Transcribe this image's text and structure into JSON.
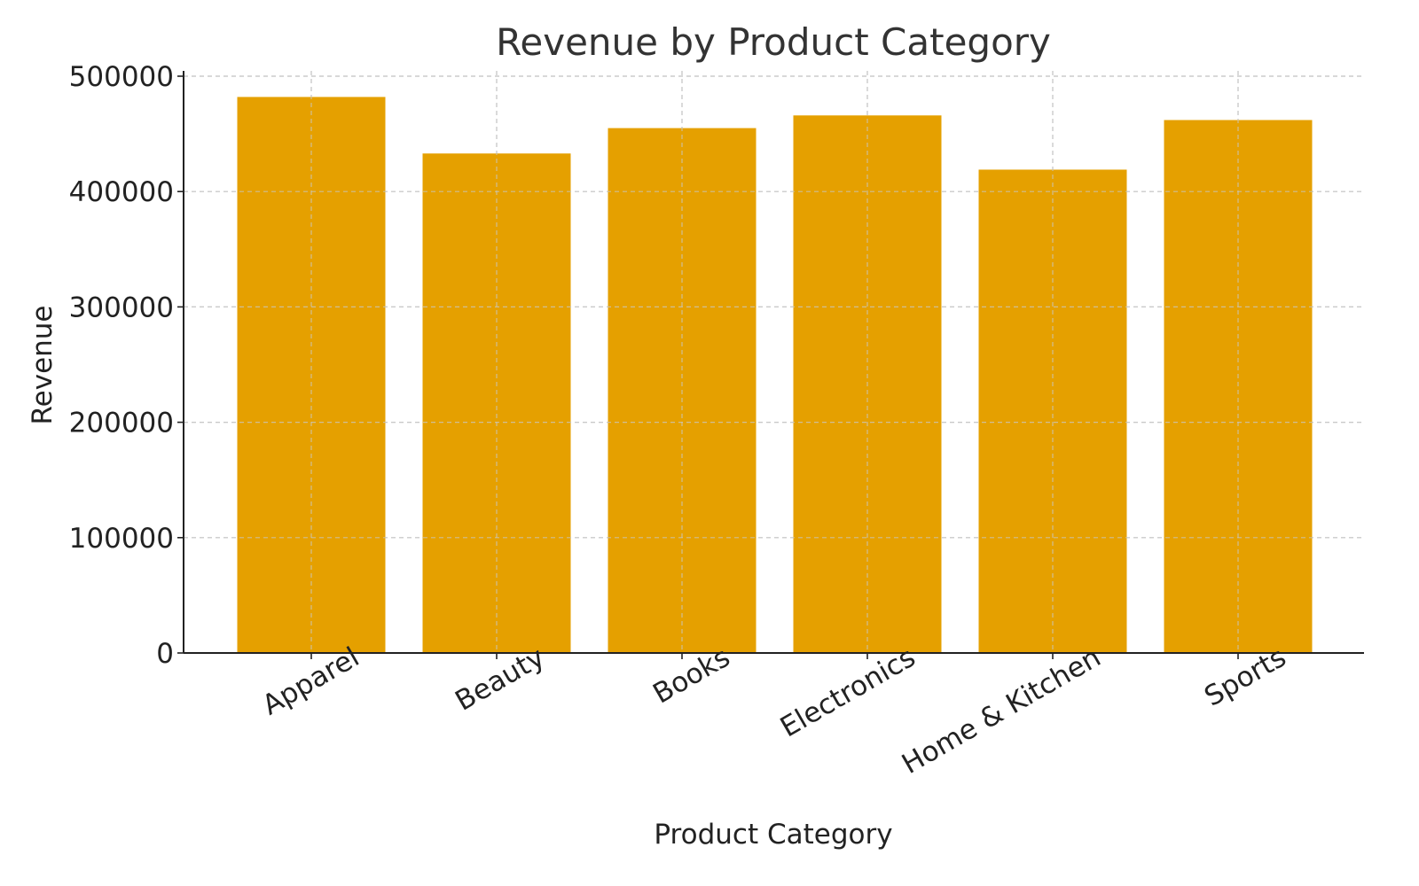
{
  "chart_data": {
    "type": "bar",
    "title": "Revenue by Product Category",
    "xlabel": "Product Category",
    "ylabel": "Revenue",
    "categories": [
      "Apparel",
      "Beauty",
      "Books",
      "Electronics",
      "Home & Kitchen",
      "Sports"
    ],
    "values": [
      482000,
      433000,
      455000,
      466000,
      419000,
      462000
    ],
    "ylim": [
      0,
      500000
    ],
    "yticks": [
      0,
      100000,
      200000,
      300000,
      400000,
      500000
    ],
    "ytick_labels": [
      "0",
      "100000",
      "200000",
      "300000",
      "400000",
      "500000"
    ],
    "grid": true,
    "bar_color": "#E5A000",
    "grid_color": "#c8c8c8",
    "axis_color": "#222222"
  }
}
